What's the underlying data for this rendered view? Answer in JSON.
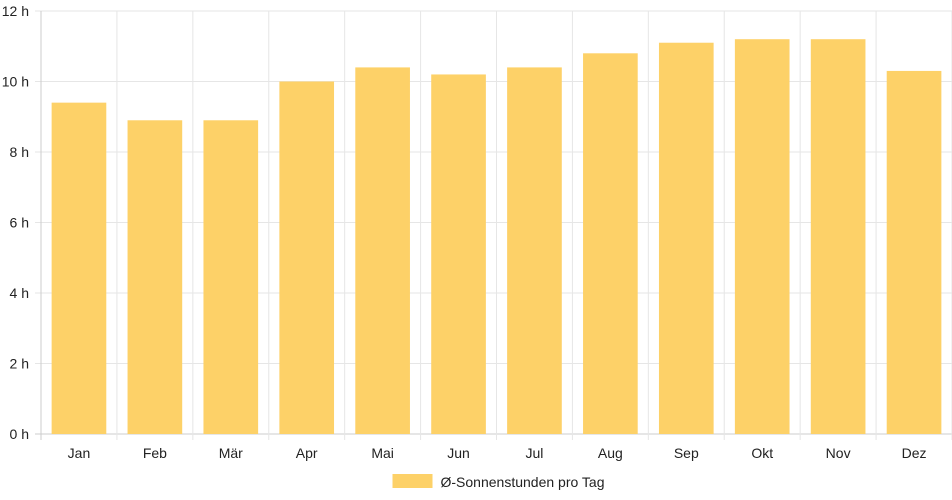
{
  "chart_data": {
    "type": "bar",
    "categories": [
      "Jan",
      "Feb",
      "Mär",
      "Apr",
      "Mai",
      "Jun",
      "Jul",
      "Aug",
      "Sep",
      "Okt",
      "Nov",
      "Dez"
    ],
    "series": [
      {
        "name": "Ø-Sonnenstunden pro Tag",
        "values": [
          9.4,
          8.9,
          8.9,
          10.0,
          10.4,
          10.2,
          10.4,
          10.8,
          11.1,
          11.2,
          11.2,
          10.3
        ]
      }
    ],
    "ylim": [
      0,
      12
    ],
    "y_ticks": [
      "0 h",
      "2 h",
      "4 h",
      "6 h",
      "8 h",
      "10 h",
      "12 h"
    ],
    "grid": true,
    "legend_position": "bottom-center",
    "colors": {
      "bar": "#fdd168",
      "grid": "#e6e6e6",
      "axis": "#cccccc"
    }
  }
}
